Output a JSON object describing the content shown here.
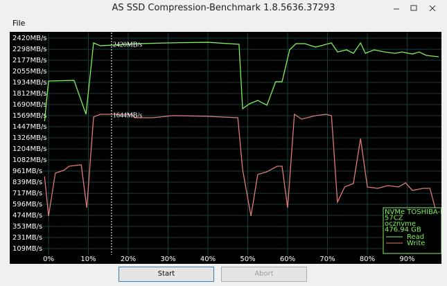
{
  "window": {
    "title": "AS SSD Compression-Benchmark 1.8.5636.37293",
    "menu": [
      "File"
    ],
    "buttons": [
      "Start",
      "Abort"
    ]
  },
  "chart_data": {
    "type": "line",
    "xlim": [
      -1.4,
      98.6
    ],
    "ylim": [
      41,
      2481
    ],
    "xticks": [
      {
        "value": 0,
        "label": "0%"
      },
      {
        "value": 10,
        "label": "10%"
      },
      {
        "value": 20,
        "label": "20%"
      },
      {
        "value": 30,
        "label": "30%"
      },
      {
        "value": 40,
        "label": "40%"
      },
      {
        "value": 50,
        "label": "50%"
      },
      {
        "value": 60,
        "label": "60%"
      },
      {
        "value": 70,
        "label": "70%"
      },
      {
        "value": 80,
        "label": "80%"
      },
      {
        "value": 90,
        "label": "90%"
      }
    ],
    "yticks": [
      {
        "value": 2420,
        "label": "2420MB/s"
      },
      {
        "value": 2298,
        "label": "2298MB/s"
      },
      {
        "value": 2177,
        "label": "2177MB/s"
      },
      {
        "value": 2055,
        "label": "2055MB/s"
      },
      {
        "value": 1934,
        "label": "1934MB/s"
      },
      {
        "value": 1812,
        "label": "1812MB/s"
      },
      {
        "value": 1690,
        "label": "1690MB/s"
      },
      {
        "value": 1569,
        "label": "1569MB/s"
      },
      {
        "value": 1447,
        "label": "1447MB/s"
      },
      {
        "value": 1326,
        "label": "1326MB/s"
      },
      {
        "value": 1204,
        "label": "1204MB/s"
      },
      {
        "value": 1082,
        "label": "1082MB/s"
      },
      {
        "value": 961,
        "label": "961MB/s"
      },
      {
        "value": 839,
        "label": "839MB/s"
      },
      {
        "value": 717,
        "label": "717MB/s"
      },
      {
        "value": 596,
        "label": "596MB/s"
      },
      {
        "value": 474,
        "label": "474MB/s"
      },
      {
        "value": 353,
        "label": "353MB/s"
      },
      {
        "value": 231,
        "label": "231MB/s"
      },
      {
        "value": 109,
        "label": "109MB/s"
      }
    ],
    "grid": true,
    "marker": {
      "x": 15.8,
      "labels": [
        {
          "value": 2420,
          "label": "2420MB/s"
        },
        {
          "value": 1644,
          "label": "1644MB/s"
        }
      ]
    },
    "legend": {
      "lines": [
        "NVMe TOSHIBA-RD",
        "57CZ",
        "ocznvme",
        "476.94 GB"
      ]
    },
    "series": [
      {
        "name": "Read",
        "color": "#7ef05c",
        "x": [
          -1.0,
          0,
          6.4,
          9.4,
          11.3,
          13.0,
          22.6,
          29.6,
          40.0,
          47.8,
          48.7,
          50.4,
          52.5,
          54.8,
          57.0,
          58.6,
          60.5,
          62.1,
          64.3,
          67.0,
          71.0,
          72.5,
          74.8,
          76.5,
          78.3,
          79.5,
          81.7,
          84.3,
          87.0,
          88.7,
          91.3,
          93.0,
          94.8,
          97.9
        ],
        "values": [
          1508,
          1949,
          1956,
          1584,
          2367,
          2336,
          2359,
          2367,
          2374,
          2352,
          1645,
          1698,
          1736,
          1683,
          1941,
          1941,
          2291,
          2359,
          2359,
          2321,
          2367,
          2268,
          2291,
          2253,
          2367,
          2253,
          2291,
          2268,
          2253,
          2268,
          2245,
          2268,
          2230,
          2215
        ]
      },
      {
        "name": "Write",
        "color": "#e07a7a",
        "x": [
          -1.0,
          0,
          1.7,
          3.8,
          5.2,
          8.2,
          9.6,
          11.3,
          13.0,
          20.9,
          21.7,
          26.1,
          31.3,
          40.0,
          47.5,
          48.7,
          50.8,
          52.5,
          54.8,
          57.4,
          58.6,
          60.0,
          61.7,
          63.5,
          67.0,
          69.6,
          71.0,
          72.5,
          74.3,
          76.5,
          78.3,
          80.0,
          82.6,
          85.2,
          87.8,
          89.6,
          91.3,
          93.9,
          95.7,
          97.0
        ],
        "values": [
          900,
          467,
          938,
          968,
          1014,
          1029,
          558,
          1554,
          1584,
          1584,
          1546,
          1546,
          1569,
          1561,
          1546,
          976,
          467,
          923,
          953,
          1014,
          1014,
          558,
          1584,
          1531,
          1569,
          1584,
          1569,
          619,
          786,
          824,
          1318,
          786,
          771,
          801,
          786,
          831,
          748,
          771,
          771,
          558
        ]
      }
    ]
  }
}
